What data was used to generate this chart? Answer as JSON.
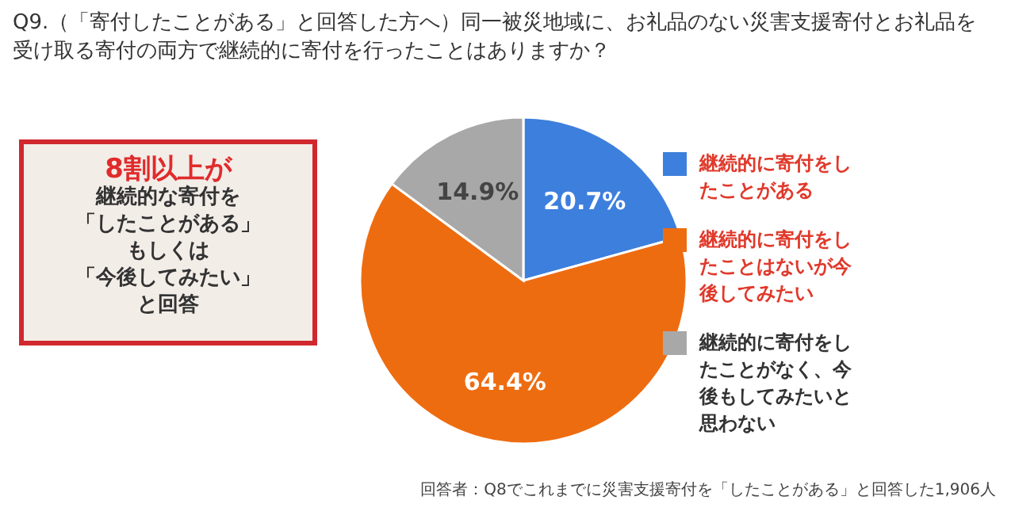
{
  "chart_data": {
    "type": "pie",
    "title": "Q9.（「寄付したことがある」と回答した方へ）同一被災地域に、お礼品のない災害支援寄付とお礼品を受け取る寄付の両方で継続的に寄付を行ったことはありますか？",
    "categories": [
      "継続的に寄付をしたことがある",
      "継続的に寄付をしたことはないが今後してみたい",
      "継続的に寄付をしたことがなく、今後もしてみたいと思わない"
    ],
    "values": [
      20.7,
      64.4,
      14.9
    ],
    "value_labels": [
      "20.7%",
      "64.4%",
      "14.9%"
    ],
    "colors": [
      "#3d7fdc",
      "#ee6c10",
      "#a8a8a8"
    ],
    "legend": "right",
    "annotations": [
      "8割以上が",
      "継続的な寄付を",
      "「したことがある」",
      "もしくは",
      "「今後してみたい」",
      "と回答",
      "回答者：Q8でこれまでに災害支援寄付を「したことがある」と回答した1,906人"
    ]
  }
}
